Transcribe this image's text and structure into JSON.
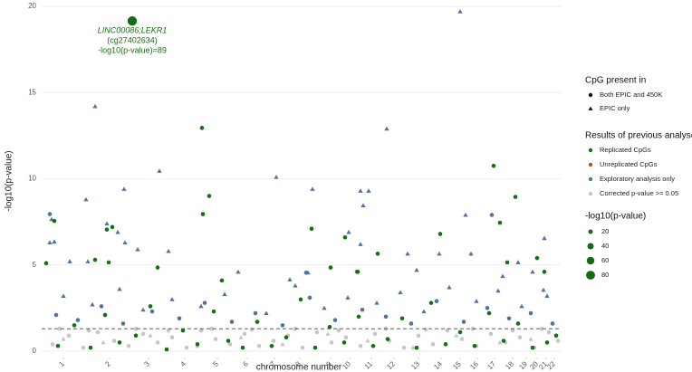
{
  "chart_data": {
    "type": "scatter",
    "x_label": "chromosome number",
    "y_label": "-log10(p-value)",
    "xlim": [
      0,
      2870
    ],
    "ylim": [
      -0.37,
      20.37
    ],
    "xticks": [
      {
        "value": 120,
        "label": "1"
      },
      {
        "value": 375,
        "label": "2"
      },
      {
        "value": 590,
        "label": "3"
      },
      {
        "value": 790,
        "label": "4"
      },
      {
        "value": 970,
        "label": "5"
      },
      {
        "value": 1135,
        "label": "6"
      },
      {
        "value": 1285,
        "label": "7"
      },
      {
        "value": 1425,
        "label": "8"
      },
      {
        "value": 1595,
        "label": "9"
      },
      {
        "value": 1700,
        "label": "10"
      },
      {
        "value": 1820,
        "label": "11"
      },
      {
        "value": 1945,
        "label": "12"
      },
      {
        "value": 2080,
        "label": "13"
      },
      {
        "value": 2205,
        "label": "14"
      },
      {
        "value": 2310,
        "label": "15"
      },
      {
        "value": 2405,
        "label": "16"
      },
      {
        "value": 2500,
        "label": "17"
      },
      {
        "value": 2600,
        "label": "18"
      },
      {
        "value": 2675,
        "label": "19"
      },
      {
        "value": 2735,
        "label": "20"
      },
      {
        "value": 2785,
        "label": "21"
      },
      {
        "value": 2830,
        "label": "22"
      }
    ],
    "yticks": [
      0,
      5,
      10,
      15,
      20
    ],
    "grid": true,
    "threshold": 1.3,
    "shape_legend": {
      "title": "CpG present in",
      "items": [
        {
          "label": "Both EPIC and 450K",
          "shape": "circle"
        },
        {
          "label": "EPIC only",
          "shape": "triangle"
        }
      ]
    },
    "legend_title": "Results of previous analyses",
    "size_legend": {
      "title": "-log10(p-value)",
      "values": [
        20,
        40,
        60,
        80
      ],
      "color": "#136b13"
    },
    "series": [
      {
        "name": "Replicated CpGs",
        "color": "#137013",
        "groups": [
          {
            "shape": "circle",
            "x": [
              885,
              925,
              890,
              2495,
              2615,
              2530,
              70,
              390,
              360,
              1490,
              1675,
              2200,
              1855,
              295,
              25,
              370,
              640,
              2570,
              2735,
              2775,
              1745,
              995,
              1595,
              90,
              180,
              270,
              350,
              430,
              520,
              600,
              690,
              780,
              860,
              950,
              1030,
              1110,
              1190,
              1270,
              1350,
              1430,
              1510,
              1590,
              1670,
              1750,
              1830,
              1910,
              1990,
              2070,
              2150,
              2230,
              2310,
              2390,
              2470,
              2550,
              2630,
              2710,
              2790,
              2840
            ],
            "values": [
              12.95,
              9,
              7.95,
              10.75,
              8.95,
              7.45,
              7.55,
              7.2,
              7.05,
              7.1,
              6.6,
              6.8,
              5.65,
              5.3,
              5.1,
              5.15,
              4.85,
              5.15,
              5.4,
              4.6,
              4.6,
              4.1,
              4.85,
              0.3,
              1.5,
              0.2,
              2.1,
              0.5,
              0.9,
              2.6,
              0.1,
              1.2,
              0.4,
              2.3,
              0.6,
              0.2,
              1.7,
              0.3,
              0.8,
              3,
              0.2,
              1.4,
              0.5,
              2,
              0.3,
              0.7,
              1.9,
              0.2,
              2.8,
              0.4,
              1.1,
              0.3,
              2.2,
              0.6,
              1.6,
              0.2,
              0.5,
              0.9
            ]
          }
        ]
      },
      {
        "name": "Unreplicated CpGs",
        "color": "#b5541c",
        "groups": []
      },
      {
        "name": "Exploratory analysis only",
        "color": "#52739a",
        "groups": [
          {
            "shape": "circle",
            "x": [
              45,
              2485,
              80,
              200,
              330,
              450,
              610,
              760,
              900,
              1050,
              1180,
              1330,
              1480,
              1620,
              1770,
              1900,
              2040,
              2180,
              2330,
              2460,
              2580,
              2700,
              2820,
              1460,
              1740
            ],
            "values": [
              7.95,
              7.9,
              2.1,
              1.8,
              2.6,
              1.6,
              2.3,
              1.9,
              2.8,
              1.7,
              2.2,
              1.5,
              3.1,
              1.8,
              2.4,
              2,
              1.6,
              2.9,
              1.7,
              2.5,
              1.9,
              2.2,
              1.6,
              4.55,
              4.6
            ]
          },
          {
            "shape": "triangle",
            "x": [
              295,
              650,
              455,
              245,
              360,
              55,
              45,
              70,
              1295,
              1495,
              1905,
              2310,
              1760,
              1805,
              1775,
              2340,
              2775,
              1695,
              1760,
              420,
              530,
              155,
              255,
              460,
              700,
              2020,
              2195,
              2370,
              2630,
              2545,
              1470,
              1085,
              1370,
              2070,
              2710,
              2770,
              120,
              280,
              430,
              560,
              720,
              880,
              1010,
              1240,
              1400,
              1560,
              1690,
              1850,
              1980,
              2110,
              2250,
              2400,
              2520,
              2650,
              2790
            ],
            "values": [
              14.2,
              10.45,
              9.4,
              8.8,
              7.4,
              7.65,
              6.3,
              6.35,
              10.1,
              9.4,
              12.9,
              19.7,
              9.3,
              9.3,
              8.45,
              7.9,
              6.55,
              6.9,
              6.2,
              6.9,
              5.9,
              5.2,
              5.2,
              6.3,
              5.8,
              5.65,
              5.65,
              5.65,
              5.15,
              4.35,
              4.55,
              4.6,
              4.15,
              4.7,
              4.6,
              3.55,
              3.2,
              2.7,
              3.6,
              2.4,
              3,
              2.6,
              3.3,
              2.2,
              3.8,
              2.5,
              3.1,
              2.8,
              3.4,
              2.3,
              3.7,
              2.9,
              3.5,
              2.6,
              3.2
            ]
          }
        ]
      },
      {
        "name": "Corrected p-value >= 0.05",
        "color": "#c6c6c6",
        "groups": [
          {
            "shape": "circle",
            "x": [
              60,
              150,
              230,
              310,
              400,
              480,
              560,
              640,
              720,
              800,
              880,
              960,
              1040,
              1120,
              1200,
              1280,
              1360,
              1440,
              1520,
              1600,
              1680,
              1760,
              1840,
              1920,
              2000,
              2080,
              2160,
              2240,
              2320,
              2400,
              2480,
              2560,
              2640,
              2720,
              2800,
              2850,
              100,
              260,
              520,
              700,
              940,
              1160,
              1400,
              1640,
              1900,
              2120,
              2380,
              2600,
              2760
            ],
            "values": [
              0.4,
              0.9,
              0.2,
              1.1,
              0.6,
              0.3,
              1,
              0.5,
              0.8,
              0.2,
              1.2,
              0.7,
              0.4,
              1,
              0.3,
              0.6,
              0.9,
              0.2,
              1.1,
              0.5,
              0.8,
              0.3,
              1,
              0.6,
              0.2,
              0.9,
              0.4,
              1.2,
              0.7,
              0.3,
              1,
              0.5,
              0.8,
              0.2,
              1.1,
              0.6,
              1.3,
              1.2,
              1.3,
              1.2,
              1.3,
              1.25,
              1.3,
              1.2,
              1.3,
              1.25,
              1.3,
              1.2,
              1.3
            ]
          },
          {
            "shape": "triangle",
            "x": [
              120,
              340,
              600,
              860,
              1100,
              1330,
              1580,
              1800,
              2050,
              2290,
              2530,
              2700
            ],
            "values": [
              0.7,
              0.5,
              0.9,
              0.3,
              0.8,
              0.4,
              1,
              0.6,
              0.2,
              0.9,
              0.5,
              0.7
            ]
          }
        ]
      }
    ],
    "highlight": {
      "x": 500,
      "y": 19.15,
      "size": 89,
      "color": "#136b13",
      "gene": "LINC00086;LEKR1",
      "probe": "(cg27402634)",
      "label": "-log10(p-value)=89"
    }
  }
}
